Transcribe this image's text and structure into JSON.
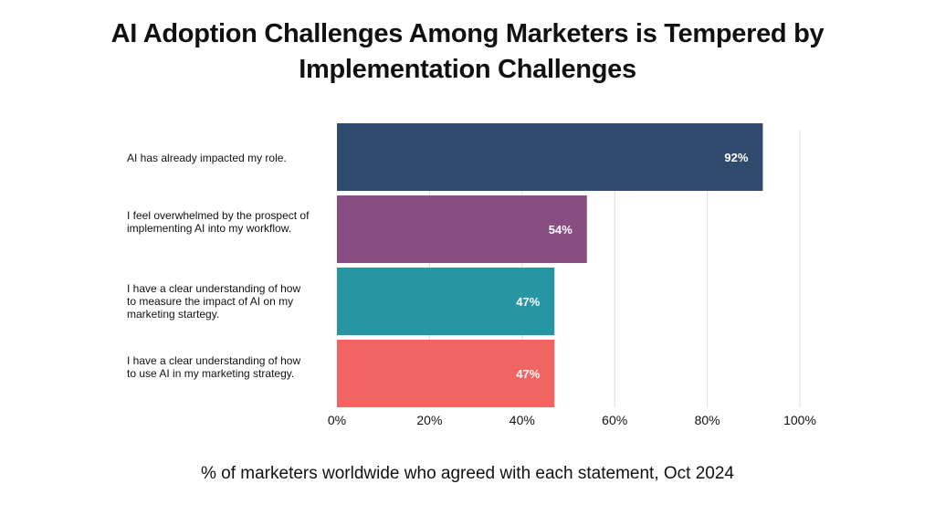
{
  "title_line1": "AI Adoption Challenges Among Marketers is Tempered by",
  "title_line2": "Implementation Challenges",
  "subtitle": "% of marketers worldwide who agreed with each statement, Oct 2024",
  "chart_data": {
    "type": "bar",
    "orientation": "horizontal",
    "categories": [
      "AI has already impacted my role.",
      "I feel overwhelmed by the prospect of implementing AI into my workflow.",
      "I have a clear understanding of how to measure the impact of AI on my marketing startegy.",
      "I have a clear understanding of how to use AI in my marketing strategy."
    ],
    "values": [
      92,
      54,
      47,
      47
    ],
    "value_labels": [
      "92%",
      "54%",
      "47%",
      "47%"
    ],
    "colors": [
      "#2f4a6d",
      "#884e81",
      "#2796a2",
      "#f06462"
    ],
    "xlim": [
      0,
      100
    ],
    "xticks": [
      0,
      20,
      40,
      60,
      80,
      100
    ],
    "xtick_labels": [
      "0%",
      "20%",
      "40%",
      "60%",
      "80%",
      "100%"
    ],
    "grid": "vertical",
    "gridline_color": "#dddddd"
  }
}
